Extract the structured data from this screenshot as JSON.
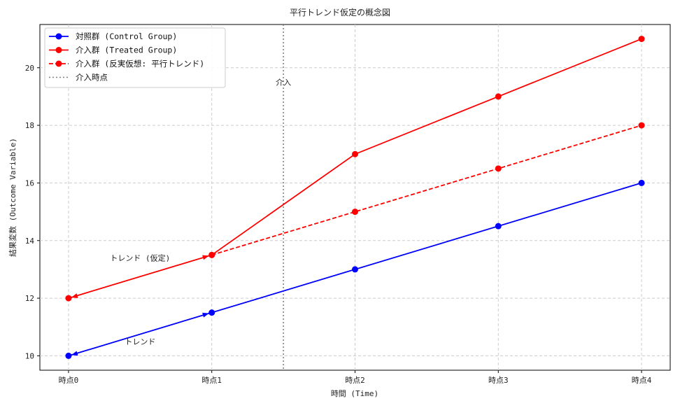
{
  "chart_data": {
    "type": "line",
    "title": "平行トレンド仮定の概念図",
    "xlabel": "時間 (Time)",
    "ylabel": "結果変数 (Outcome Variable)",
    "categories": [
      "時点0",
      "時点1",
      "時点2",
      "時点3",
      "時点4"
    ],
    "ylim": [
      9.5,
      21.5
    ],
    "yticks": [
      10,
      12,
      14,
      16,
      18,
      20
    ],
    "grid": true,
    "legend_position": "top-left",
    "series": [
      {
        "name": "対照群 (Control Group)",
        "values": [
          10,
          11.5,
          13,
          14.5,
          16
        ],
        "color": "#0000ff",
        "linestyle": "solid",
        "marker": "circle"
      },
      {
        "name": "介入群 (Treated Group)",
        "values": [
          12,
          13.5,
          17,
          19,
          21
        ],
        "color": "#ff0000",
        "linestyle": "solid",
        "marker": "circle"
      },
      {
        "name": "介入群 (反実仮想: 平行トレンド)",
        "values": [
          null,
          13.5,
          15,
          16.5,
          18
        ],
        "color": "#ff0000",
        "linestyle": "dashed",
        "marker": "circle"
      }
    ],
    "intervention": {
      "x": 1.5,
      "label": "介入",
      "legend_label": "介入時点",
      "color": "#808080"
    },
    "annotations": [
      {
        "text": "トレンド (仮定)",
        "color": "#ff0000",
        "arrow_from": [
          0,
          12
        ],
        "arrow_to": [
          1,
          13.5
        ],
        "text_at": [
          0.5,
          13.3
        ]
      },
      {
        "text": "トレンド",
        "color": "#0000ff",
        "arrow_from": [
          0,
          10
        ],
        "arrow_to": [
          1,
          11.5
        ],
        "text_at": [
          0.5,
          10.4
        ]
      }
    ]
  }
}
